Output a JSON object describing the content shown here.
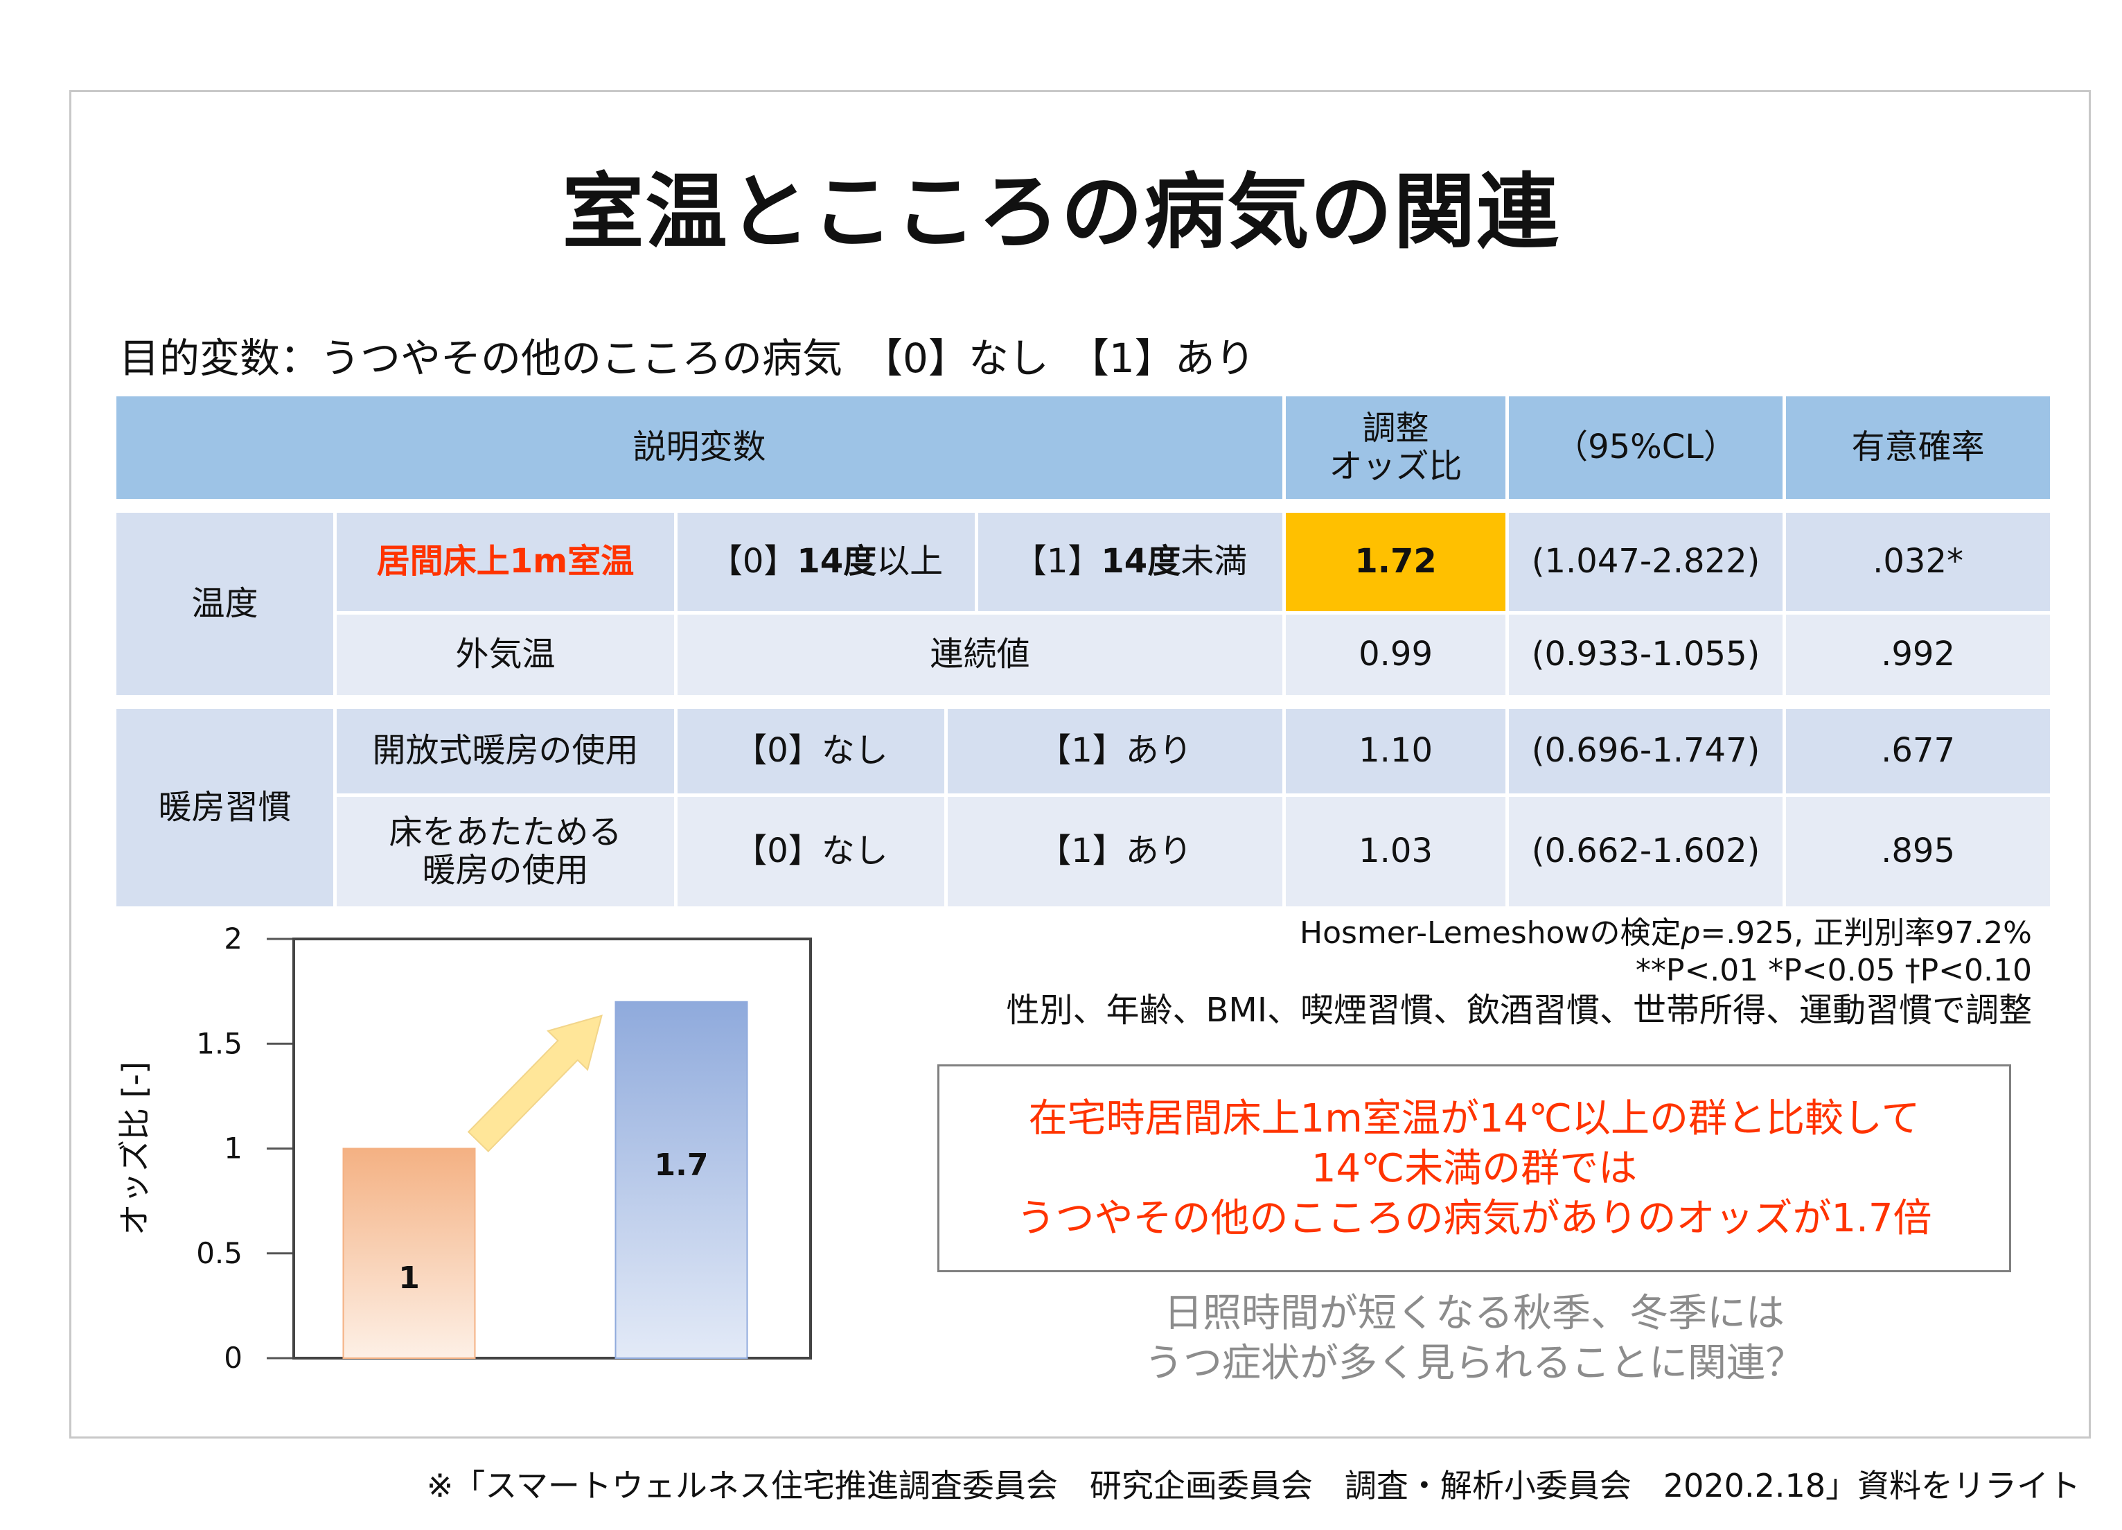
{
  "title": "室温とこころの病気の関連",
  "objective": "目的変数：うつやその他のこころの病気　【0】なし　【1】あり",
  "table": {
    "header": {
      "explanatory": "説明変数",
      "odds_line1": "調整",
      "odds_line2": "オッズ比",
      "ci": "（95%CL）",
      "p": "有意確率"
    },
    "group1": "温度",
    "group2": "暖房習慣",
    "rows": [
      {
        "name": "居間床上1m室温",
        "c0_tag": "【0】",
        "c0_bold": "14度",
        "c0_tail": "以上",
        "c1_tag": "【1】",
        "c1_bold": "14度",
        "c1_tail": "未満",
        "or": "1.72",
        "ci": "(1.047-2.822)",
        "p": ".032*"
      },
      {
        "name": "外気温",
        "cat": "連続値",
        "or": "0.99",
        "ci": "(0.933-1.055)",
        "p": ".992"
      },
      {
        "name": "開放式暖房の使用",
        "c0": "【0】なし",
        "c1": "【1】あり",
        "or": "1.10",
        "ci": "(0.696-1.747)",
        "p": ".677"
      },
      {
        "name_line1": "床をあたためる",
        "name_line2": "暖房の使用",
        "c0": "【0】なし",
        "c1": "【1】あり",
        "or": "1.03",
        "ci": "(0.662-1.602)",
        "p": ".895"
      }
    ]
  },
  "notes": {
    "hl_prefix": "Hosmer-Lemeshowの検定",
    "hl_p": "p",
    "hl_rest": "=.925, 正判別率97.2%",
    "sig": "**P<.01 *P<0.05 †P<0.10",
    "adjust": "性別、年齢、BMI、喫煙習慣、飲酒習慣、世帯所得、運動習慣で調整"
  },
  "callout": {
    "line1": "在宅時居間床上1m室温が14℃以上の群と比較して",
    "line2": "14℃未満の群では",
    "line3": "うつやその他のこころの病気がありのオッズが1.7倍"
  },
  "question": {
    "line1": "日照時間が短くなる秋季、冬季には",
    "line2": "うつ症状が多く見られることに関連？"
  },
  "source": "※「スマートウェルネス住宅推進調査委員会　研究企画委員会　調査・解析小委員会　2020.2.18」資料をリライト",
  "chart_data": {
    "type": "bar",
    "categories": [
      "",
      ""
    ],
    "values": [
      1,
      1.7
    ],
    "data_labels": [
      "1",
      "1.7"
    ],
    "ylabel": "オッズ比 [-]",
    "ylim": [
      0,
      2
    ],
    "yticks": [
      0,
      0.5,
      1,
      1.5,
      2
    ],
    "ytick_labels": [
      "0",
      "0.5",
      "1",
      "1.5",
      "2"
    ],
    "colors": [
      "#f4b183",
      "#8faadc"
    ],
    "arrow_color": "#ffe699",
    "grid": false
  }
}
